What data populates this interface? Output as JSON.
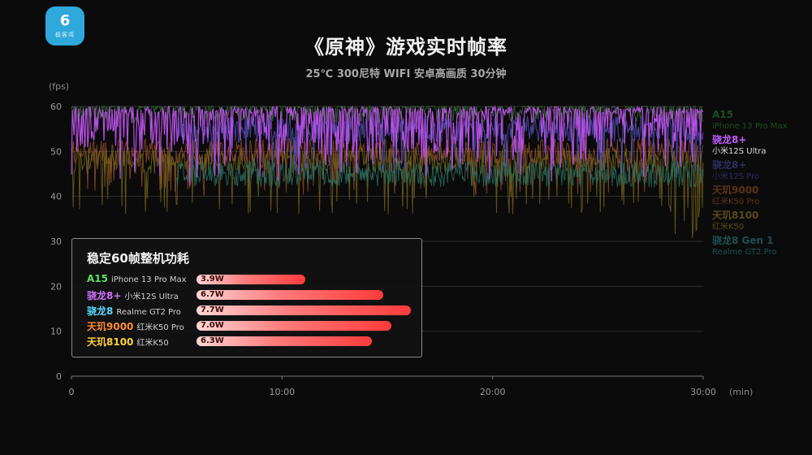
{
  "logo": {
    "mark": "6",
    "text": "极客湾"
  },
  "title": "《原神》游戏实时帧率",
  "subtitle": "25℃ 300尼特 WIFI 安卓高画质 30分钟",
  "colors": {
    "A15": "#3d7a3d",
    "8plus": "#b44fe0",
    "8": "#2a6f8a",
    "9000": "#a0522d",
    "8100": "#7a6a1e",
    "8gen1": "#2d7a6a"
  },
  "legend": [
    {
      "chip": "A15",
      "device": "iPhone 13 Pro Max",
      "color": "#3d9a3d",
      "dim": true
    },
    {
      "chip": "骁龙8+",
      "device": "小米12S Ultra",
      "color": "#c25cff",
      "dim": false
    },
    {
      "chip": "骁龙8+",
      "device": "小米12S Pro",
      "color": "#5a58c8",
      "dim": true
    },
    {
      "chip": "天玑9000",
      "device": "红米K50 Pro",
      "color": "#c0602a",
      "dim": true
    },
    {
      "chip": "天玑8100",
      "device": "红米K50",
      "color": "#b09a2a",
      "dim": true
    },
    {
      "chip": "骁龙8 Gen 1",
      "device": "Realme GT2 Pro",
      "color": "#3aa3a3",
      "dim": true
    }
  ],
  "panel": {
    "title": "稳定60帧整机功耗",
    "rows": [
      {
        "chip": "A15",
        "device": "iPhone 13 Pro Max",
        "color": "#5ee05e",
        "watts": 3.9,
        "label": "3.9W"
      },
      {
        "chip": "骁龙8+",
        "device": "小米12S Ultra",
        "color": "#d070ff",
        "watts": 6.7,
        "label": "6.7W"
      },
      {
        "chip": "骁龙8",
        "device": "Realme GT2 Pro",
        "color": "#5ad6ff",
        "watts": 7.7,
        "label": "7.7W"
      },
      {
        "chip": "天玑9000",
        "device": "红米K50 Pro",
        "color": "#ff8a3a",
        "watts": 7.0,
        "label": "7.0W"
      },
      {
        "chip": "天玑8100",
        "device": "红米K50",
        "color": "#ffd040",
        "watts": 6.3,
        "label": "6.3W"
      }
    ]
  },
  "chart_data": {
    "type": "line",
    "title": "《原神》游戏实时帧率",
    "subtitle": "25℃ 300尼特 WIFI 安卓高画质 30分钟",
    "ylabel": "(fps)",
    "xlabel": "(min)",
    "ylim": [
      0,
      60
    ],
    "xlim": [
      0,
      30
    ],
    "yticks": [
      "0",
      "10",
      "20",
      "30",
      "40",
      "50",
      "60"
    ],
    "xticks": [
      "0",
      "10:00",
      "20:00",
      "30:00"
    ],
    "grid": true,
    "legend_position": "right",
    "series": [
      {
        "name": "A15 iPhone 13 Pro Max",
        "color": "#3d7a3d",
        "baseline": 59.5,
        "dip_to": 57
      },
      {
        "name": "骁龙8+ 小米12S Ultra",
        "color": "#b44fe0",
        "baseline": 60,
        "dip_to": 42
      },
      {
        "name": "骁龙8+ 小米12S Pro",
        "color": "#5a58c8",
        "baseline": 55,
        "dip_to": 45
      },
      {
        "name": "天玑9000 红米K50 Pro",
        "color": "#a0522d",
        "baseline": 50,
        "dip_to": 40
      },
      {
        "name": "天玑8100 红米K50",
        "color": "#7a6a1e",
        "baseline": 48,
        "dip_to": 36
      },
      {
        "name": "骁龙8 Gen 1 Realme GT2 Pro",
        "color": "#2d7a6a",
        "baseline": 45,
        "dip_to": 43
      }
    ]
  }
}
